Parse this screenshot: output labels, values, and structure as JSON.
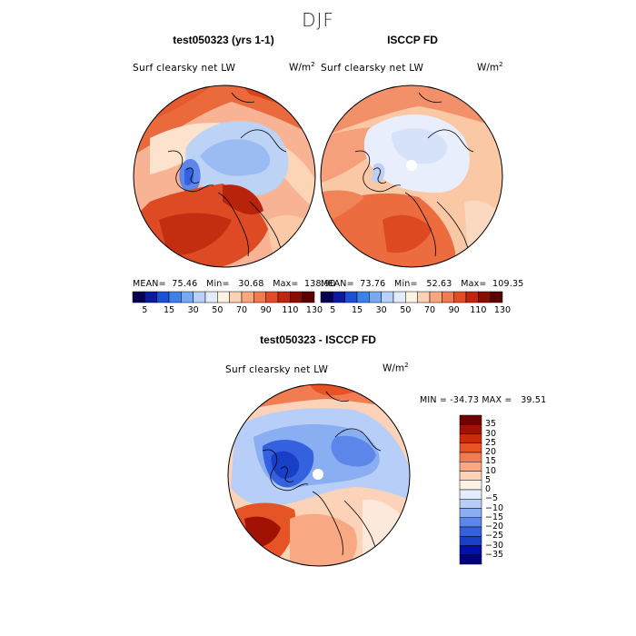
{
  "season": "DJF",
  "panels": [
    {
      "title": "test050323 (yrs 1-1)",
      "variable": "Surf clearsky net LW",
      "units": "W/m",
      "units_sup": "2",
      "stats": "MEAN=  75.46   Min=   30.68   Max=  138.90"
    },
    {
      "title": "ISCCP FD",
      "variable": "Surf clearsky net LW",
      "units": "W/m",
      "units_sup": "2",
      "stats": "MEAN=  73.76   Min=   52.63   Max=  109.35"
    },
    {
      "title": "test050323 - ISCCP FD",
      "variable": "Surf clearsky net LW",
      "units": "W/m",
      "units_sup": "2",
      "stats": "MIN = -34.73 MAX =   39.51"
    }
  ],
  "colorbar_top": {
    "colors": [
      "#08004e",
      "#0c1aa0",
      "#1a4fd6",
      "#3f7fe8",
      "#79a9f2",
      "#b7d1fa",
      "#e2ecfd",
      "#fff3e6",
      "#fdd1b3",
      "#f9a77f",
      "#f17a52",
      "#e34a26",
      "#c0260f",
      "#8c0c02",
      "#5a0000"
    ],
    "ticks": [
      "5",
      "15",
      "30",
      "50",
      "70",
      "90",
      "110",
      "130"
    ]
  },
  "colorbar_diff": {
    "colors": [
      "#000080",
      "#0010a8",
      "#1a3fc7",
      "#3462de",
      "#5d86ea",
      "#8aaef2",
      "#b7cff8",
      "#e4edfc",
      "#fdf2e6",
      "#fcd3b8",
      "#f8a984",
      "#f27c52",
      "#e65324",
      "#cc2b0a",
      "#a21204",
      "#700000"
    ],
    "ticks": [
      "35",
      "30",
      "25",
      "20",
      "15",
      "10",
      "5",
      "0",
      "−5",
      "−10",
      "−15",
      "−20",
      "−25",
      "−30",
      "−35"
    ]
  }
}
